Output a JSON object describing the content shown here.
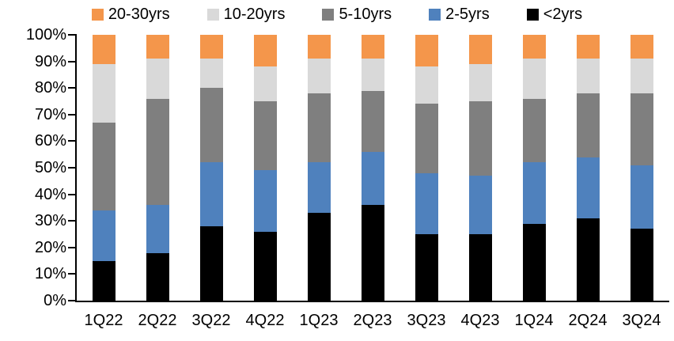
{
  "chart_data": {
    "type": "bar",
    "variant": "stacked-100-percent",
    "title": "",
    "xlabel": "",
    "ylabel": "",
    "ylim": [
      0,
      100
    ],
    "grid": false,
    "legend_position": "top",
    "y_tick_labels": [
      "100%",
      "90%",
      "80%",
      "70%",
      "60%",
      "50%",
      "40%",
      "30%",
      "20%",
      "10%",
      "0%"
    ],
    "categories": [
      "1Q22",
      "2Q22",
      "3Q22",
      "4Q22",
      "1Q23",
      "2Q23",
      "3Q23",
      "4Q23",
      "1Q24",
      "2Q24",
      "3Q24"
    ],
    "series": [
      {
        "name": "<2yrs",
        "color": "#000000",
        "values": [
          15,
          18,
          28,
          26,
          33,
          36,
          25,
          25,
          29,
          31,
          27
        ]
      },
      {
        "name": "2-5yrs",
        "color": "#4F81BD",
        "values": [
          19,
          18,
          24,
          23,
          19,
          20,
          23,
          22,
          23,
          23,
          24
        ]
      },
      {
        "name": "5-10yrs",
        "color": "#7F7F7F",
        "values": [
          33,
          40,
          28,
          26,
          26,
          23,
          26,
          28,
          24,
          24,
          27
        ]
      },
      {
        "name": "10-20yrs",
        "color": "#D9D9D9",
        "values": [
          22,
          15,
          11,
          13,
          13,
          12,
          14,
          14,
          15,
          13,
          13
        ]
      },
      {
        "name": "20-30yrs",
        "color": "#F4964B",
        "values": [
          11,
          9,
          9,
          12,
          9,
          9,
          12,
          11,
          9,
          9,
          9
        ]
      }
    ],
    "legend": [
      {
        "label": "20-30yrs",
        "color": "#F4964B"
      },
      {
        "label": "10-20yrs",
        "color": "#D9D9D9"
      },
      {
        "label": "5-10yrs",
        "color": "#7F7F7F"
      },
      {
        "label": "2-5yrs",
        "color": "#4F81BD"
      },
      {
        "label": "<2yrs",
        "color": "#000000"
      }
    ],
    "colors": {
      "axis": "#000000",
      "text": "#000000",
      "background": "#ffffff"
    }
  }
}
